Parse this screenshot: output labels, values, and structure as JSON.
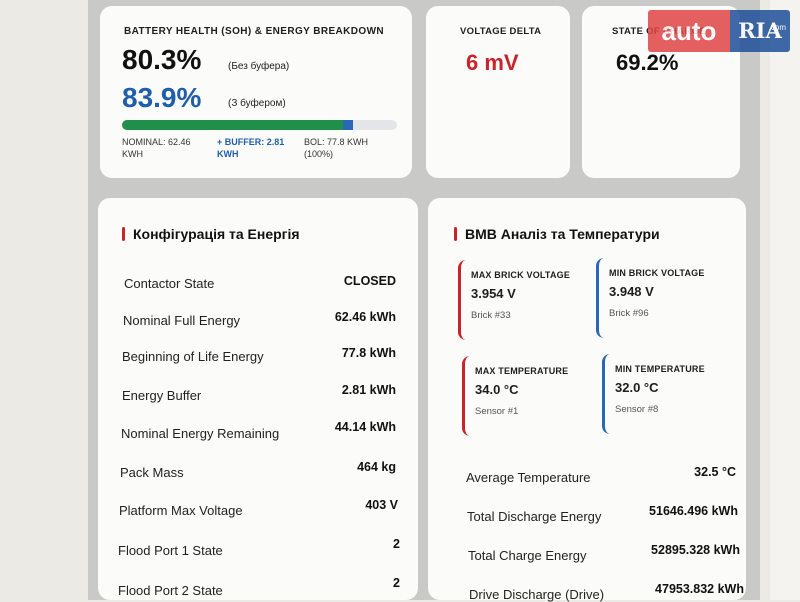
{
  "soh": {
    "title": "BATTERY HEALTH (SOH) & ENERGY BREAKDOWN",
    "value_no_buffer": "80.3%",
    "note_no_buffer": "(Без буфера)",
    "value_with_buffer": "83.9%",
    "note_with_buffer": "(З буфером)",
    "bar_green_pct": 80.3,
    "bar_blue_pct": 83.9,
    "nominal_line1": "NOMINAL: 62.46",
    "nominal_line2": "KWH",
    "buffer_line1": "+ BUFFER: 2.81",
    "buffer_line2": "KWH",
    "bol_line1": "BOL: 77.8 KWH",
    "bol_line2": "(100%)"
  },
  "voltage_delta": {
    "title": "VOLTAGE DELTA",
    "value": "6 mV"
  },
  "state_of_charge": {
    "title": "STATE OF CHARGE",
    "value": "69.2%"
  },
  "config": {
    "title": "Конфігурація та Енергія",
    "rows": [
      {
        "label": "Contactor State",
        "value": "CLOSED"
      },
      {
        "label": "Nominal Full Energy",
        "value": "62.46 kWh"
      },
      {
        "label": "Beginning of Life Energy",
        "value": "77.8 kWh"
      },
      {
        "label": "Energy Buffer",
        "value": "2.81 kWh"
      },
      {
        "label": "Nominal Energy Remaining",
        "value": "44.14 kWh"
      },
      {
        "label": "Pack Mass",
        "value": "464 kg"
      },
      {
        "label": "Platform Max Voltage",
        "value": "403 V"
      },
      {
        "label": "Flood Port 1 State",
        "value": "2"
      },
      {
        "label": "Flood Port 2 State",
        "value": "2"
      }
    ]
  },
  "bmb": {
    "title": "BMB Аналіз та Температури",
    "max_brick": {
      "title": "MAX BRICK VOLTAGE",
      "value": "3.954 V",
      "sub": "Brick #33"
    },
    "min_brick": {
      "title": "MIN BRICK VOLTAGE",
      "value": "3.948 V",
      "sub": "Brick #96"
    },
    "max_temp": {
      "title": "MAX TEMPERATURE",
      "value": "34.0 °C",
      "sub": "Sensor #1"
    },
    "min_temp": {
      "title": "MIN TEMPERATURE",
      "value": "32.0 °C",
      "sub": "Sensor #8"
    },
    "rows": [
      {
        "label": "Average Temperature",
        "value": "32.5 °C"
      },
      {
        "label": "Total Discharge Energy",
        "value": "51646.496 kWh"
      },
      {
        "label": "Total Charge Energy",
        "value": "52895.328 kWh"
      },
      {
        "label": "Drive Discharge (Drive)",
        "value": "47953.832 kWh"
      }
    ]
  },
  "watermark": {
    "auto": "auto",
    "ria": "RIA",
    "com": ".com"
  },
  "colors": {
    "accent_red": "#c8242c",
    "accent_blue": "#1f5ea8",
    "bar_green": "#1f8f4a"
  }
}
